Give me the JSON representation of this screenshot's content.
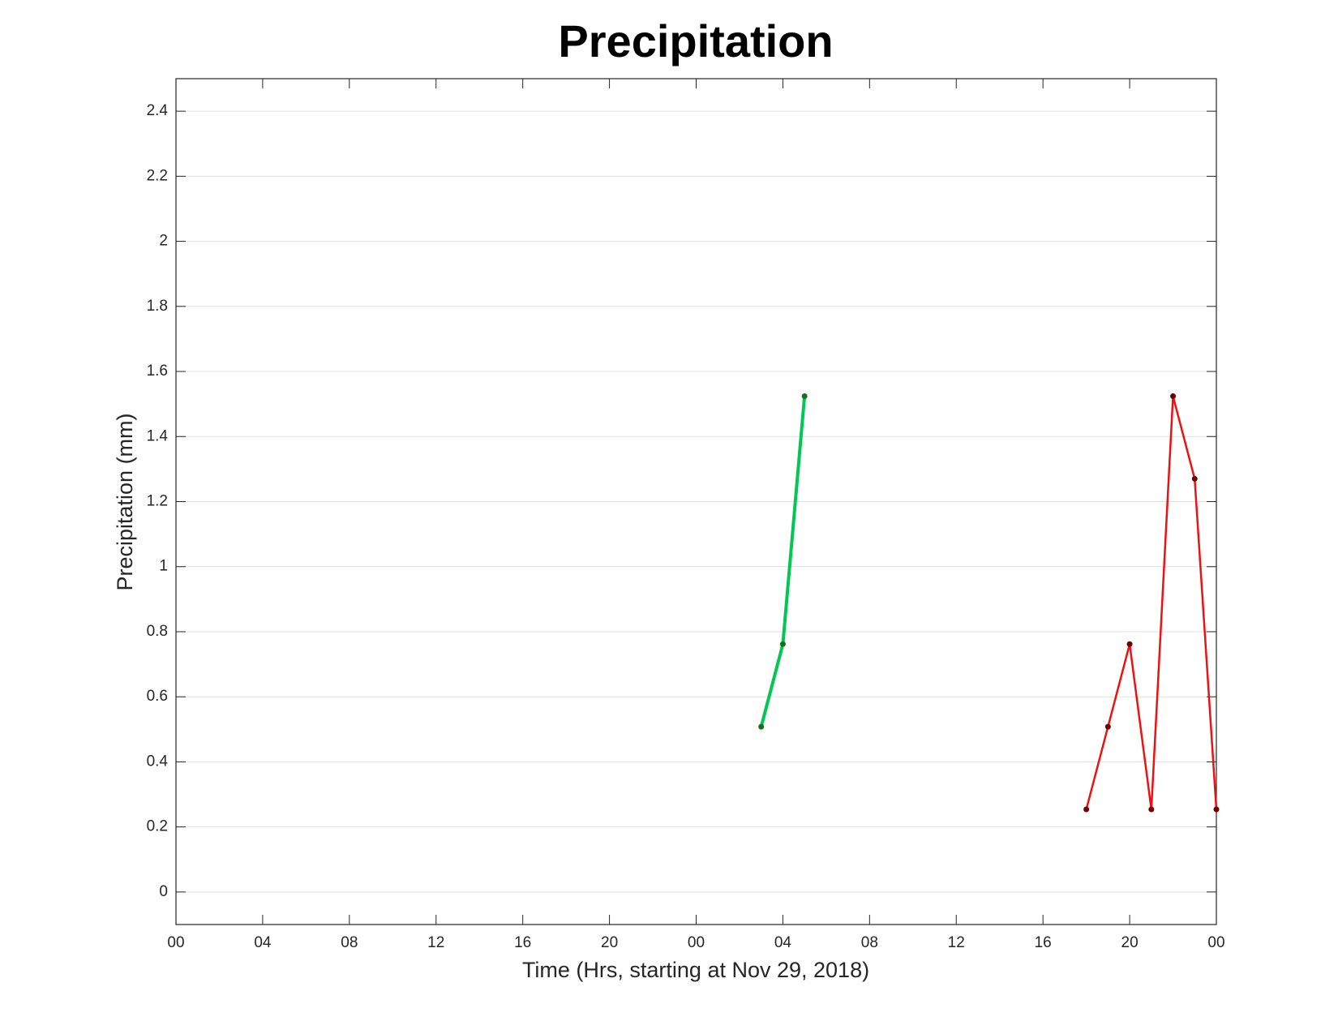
{
  "chart_data": {
    "type": "line",
    "title": "Precipitation",
    "xlabel": "Time (Hrs, starting at Nov 29, 2018)",
    "ylabel": "Precipitation (mm)",
    "xlim": [
      0,
      48
    ],
    "ylim": [
      -0.1,
      2.5
    ],
    "xticks": [
      {
        "value": 0,
        "label": "00"
      },
      {
        "value": 4,
        "label": "04"
      },
      {
        "value": 8,
        "label": "08"
      },
      {
        "value": 12,
        "label": "12"
      },
      {
        "value": 16,
        "label": "16"
      },
      {
        "value": 20,
        "label": "20"
      },
      {
        "value": 24,
        "label": "00"
      },
      {
        "value": 28,
        "label": "04"
      },
      {
        "value": 32,
        "label": "08"
      },
      {
        "value": 36,
        "label": "12"
      },
      {
        "value": 40,
        "label": "16"
      },
      {
        "value": 44,
        "label": "20"
      },
      {
        "value": 48,
        "label": "00"
      }
    ],
    "yticks": [
      0,
      0.2,
      0.4,
      0.6,
      0.8,
      1,
      1.2,
      1.4,
      1.6,
      1.8,
      2,
      2.2,
      2.4
    ],
    "grid": true,
    "series": [
      {
        "color": "#00c853",
        "marker_color": "#1b6e1b",
        "line_width": 4,
        "x": [
          27,
          28,
          29
        ],
        "values": [
          0.508,
          0.762,
          1.524
        ]
      },
      {
        "color": "#ee1111",
        "marker_color": "#6e0000",
        "line_width": 2.5,
        "x": [
          42,
          43,
          44,
          45,
          46,
          47,
          48
        ],
        "values": [
          0.254,
          0.508,
          0.762,
          0.254,
          1.524,
          1.27,
          0.254
        ]
      }
    ]
  }
}
